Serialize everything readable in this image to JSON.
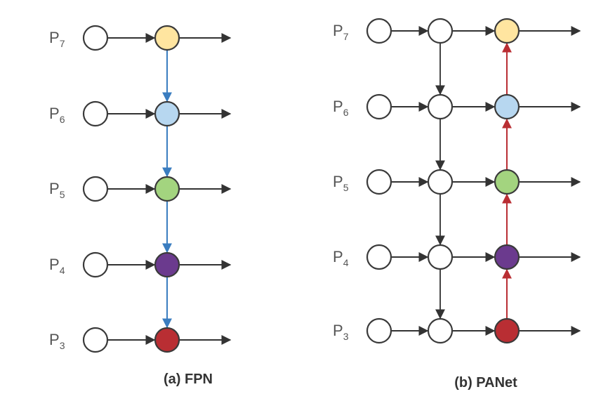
{
  "panels": [
    {
      "id": "fpn",
      "caption": "(a) FPN",
      "levels": [
        {
          "prefix": "P",
          "sub": "7",
          "color": "#FFE5A0"
        },
        {
          "prefix": "P",
          "sub": "6",
          "color": "#B7D7F0"
        },
        {
          "prefix": "P",
          "sub": "5",
          "color": "#A3D47F"
        },
        {
          "prefix": "P",
          "sub": "4",
          "color": "#6B3A8E"
        },
        {
          "prefix": "P",
          "sub": "3",
          "color": "#B92E33"
        }
      ],
      "vertical_arrow_color": "#3A7DC0",
      "vertical_direction": "top-down"
    },
    {
      "id": "panet",
      "caption": "(b) PANet",
      "levels": [
        {
          "prefix": "P",
          "sub": "7",
          "color": "#FFE5A0"
        },
        {
          "prefix": "P",
          "sub": "6",
          "color": "#B7D7F0"
        },
        {
          "prefix": "P",
          "sub": "5",
          "color": "#A3D47F"
        },
        {
          "prefix": "P",
          "sub": "4",
          "color": "#6B3A8E"
        },
        {
          "prefix": "P",
          "sub": "3",
          "color": "#B92E33"
        }
      ],
      "topdown_arrow_color": "#444444",
      "bottomup_arrow_color": "#B92E33"
    }
  ],
  "node_border_color": "#3A3A3A",
  "horizontal_arrow_color": "#333333"
}
